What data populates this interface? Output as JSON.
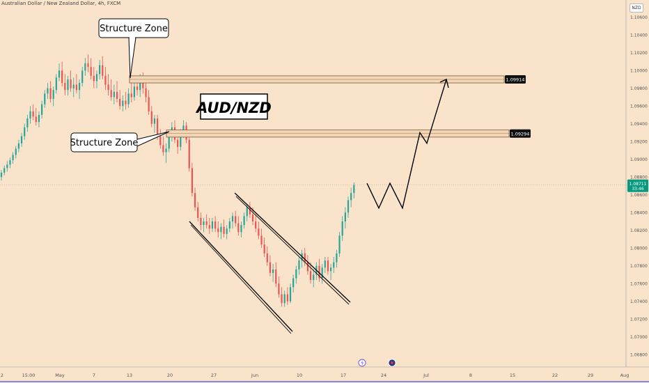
{
  "header": {
    "symbol_line": "Australian Dollar / New Zealand Dollar, 4h, FXCM",
    "currency": "NZD"
  },
  "chart_data": {
    "type": "candlestick",
    "title": "AUD/NZD",
    "y_ticks": [
      "1.10600",
      "1.10400",
      "1.10200",
      "1.10000",
      "1.09800",
      "1.09600",
      "1.09400",
      "1.09200",
      "1.09000",
      "1.08800",
      "1.08600",
      "1.08400",
      "1.08200",
      "1.08000",
      "1.07800",
      "1.07600",
      "1.07400",
      "1.07200",
      "1.07000",
      "1.06800"
    ],
    "ylim": [
      1.067,
      1.107
    ],
    "x_ticks": [
      "2",
      "15:00",
      "May",
      "7",
      "13",
      "20",
      "27",
      "Jun",
      "10",
      "17",
      "24",
      "Jul",
      "8",
      "15",
      "22",
      "29",
      "Aug"
    ],
    "annotations": [
      {
        "text": "Structure Zone",
        "target": "upper-zone"
      },
      {
        "text": "Structure Zone",
        "target": "lower-zone"
      }
    ],
    "zones": [
      {
        "name": "upper-zone",
        "low": 1.0986,
        "high": 1.0994,
        "label": "1.09914"
      },
      {
        "name": "lower-zone",
        "low": 1.0925,
        "high": 1.0933,
        "label": "1.09294"
      }
    ],
    "current_price": {
      "value": "1.08711",
      "time_left": "33:46",
      "level": 1.0871
    },
    "projection": [
      1.0873,
      1.0845,
      1.0873,
      1.0845,
      1.093,
      1.0918,
      1.099
    ],
    "candles": [
      [
        1.088,
        1.0888,
        1.0876,
        1.0885
      ],
      [
        1.0885,
        1.0893,
        1.0882,
        1.089
      ],
      [
        1.089,
        1.0898,
        1.0886,
        1.0894
      ],
      [
        1.0894,
        1.0902,
        1.089,
        1.0899
      ],
      [
        1.0899,
        1.0908,
        1.0895,
        1.0905
      ],
      [
        1.0905,
        1.0915,
        1.0901,
        1.0912
      ],
      [
        1.0912,
        1.0922,
        1.0908,
        1.0918
      ],
      [
        1.0918,
        1.093,
        1.0914,
        1.0926
      ],
      [
        1.0926,
        1.094,
        1.0922,
        1.0936
      ],
      [
        1.0936,
        1.095,
        1.0931,
        1.0946
      ],
      [
        1.0946,
        1.096,
        1.094,
        1.0954
      ],
      [
        1.0954,
        1.0962,
        1.0944,
        1.0948
      ],
      [
        1.0948,
        1.0958,
        1.0938,
        1.0942
      ],
      [
        1.0942,
        1.0954,
        1.0936,
        1.095
      ],
      [
        1.095,
        1.0966,
        1.0946,
        1.0962
      ],
      [
        1.0962,
        1.0978,
        1.0958,
        1.0974
      ],
      [
        1.0974,
        1.0986,
        1.0968,
        1.098
      ],
      [
        1.098,
        1.0988,
        1.0964,
        1.0968
      ],
      [
        1.0968,
        1.0982,
        1.096,
        1.0978
      ],
      [
        1.0978,
        1.0996,
        1.0974,
        1.0992
      ],
      [
        1.0992,
        1.1008,
        1.0988,
        1.1
      ],
      [
        1.1,
        1.101,
        1.0982,
        1.0986
      ],
      [
        1.0986,
        1.0996,
        1.0972,
        1.0978
      ],
      [
        1.0978,
        1.0994,
        1.0972,
        1.099
      ],
      [
        1.099,
        1.1,
        1.0976,
        1.098
      ],
      [
        1.098,
        1.0992,
        1.097,
        1.0984
      ],
      [
        1.0984,
        1.0996,
        1.0974,
        1.0978
      ],
      [
        1.0978,
        1.099,
        1.0968,
        1.0986
      ],
      [
        1.0986,
        1.1004,
        1.0982,
        1.1
      ],
      [
        1.1,
        1.1014,
        1.0994,
        1.1008
      ],
      [
        1.1008,
        1.1018,
        1.0998,
        1.1004
      ],
      [
        1.1004,
        1.1014,
        1.099,
        1.0994
      ],
      [
        1.0994,
        1.1004,
        1.098,
        1.0988
      ],
      [
        1.0988,
        1.1,
        1.098,
        1.0996
      ],
      [
        1.0996,
        1.1012,
        1.099,
        1.1006
      ],
      [
        1.1006,
        1.1016,
        1.099,
        1.0994
      ],
      [
        1.0994,
        1.1004,
        1.0978,
        1.0984
      ],
      [
        1.0984,
        1.0996,
        1.0972,
        1.0978
      ],
      [
        1.0978,
        1.099,
        1.0966,
        1.097
      ],
      [
        1.097,
        1.0984,
        1.0962,
        1.0976
      ],
      [
        1.0976,
        1.0988,
        1.0964,
        1.0968
      ],
      [
        1.0968,
        1.0978,
        1.0956,
        1.096
      ],
      [
        1.096,
        1.0972,
        1.0954,
        1.0966
      ],
      [
        1.0966,
        1.0976,
        1.0956,
        1.0962
      ],
      [
        1.0962,
        1.098,
        1.0958,
        1.0974
      ],
      [
        1.0974,
        1.0986,
        1.0964,
        1.097
      ],
      [
        1.097,
        1.0988,
        1.0966,
        1.0982
      ],
      [
        1.0982,
        1.0994,
        1.0972,
        1.0978
      ],
      [
        1.0978,
        1.0996,
        1.097,
        1.099
      ],
      [
        1.099,
        1.0998,
        1.0974,
        1.098
      ],
      [
        1.098,
        1.0988,
        1.0964,
        1.097
      ],
      [
        1.097,
        1.0978,
        1.095,
        1.0954
      ],
      [
        1.0954,
        1.096,
        1.0936,
        1.094
      ],
      [
        1.094,
        1.095,
        1.093,
        1.0946
      ],
      [
        1.0946,
        1.095,
        1.0922,
        1.0926
      ],
      [
        1.0926,
        1.0934,
        1.0912,
        1.0916
      ],
      [
        1.0916,
        1.0926,
        1.0904,
        1.0908
      ],
      [
        1.0908,
        1.0918,
        1.0896,
        1.0912
      ],
      [
        1.0912,
        1.093,
        1.0908,
        1.0926
      ],
      [
        1.0926,
        1.0942,
        1.092,
        1.0936
      ],
      [
        1.0936,
        1.0944,
        1.0918,
        1.0922
      ],
      [
        1.0922,
        1.093,
        1.0906,
        1.0914
      ],
      [
        1.0914,
        1.0934,
        1.091,
        1.093
      ],
      [
        1.093,
        1.0944,
        1.0924,
        1.0938
      ],
      [
        1.0938,
        1.0942,
        1.0918,
        1.0922
      ],
      [
        1.0922,
        1.0928,
        1.0886,
        1.089
      ],
      [
        1.089,
        1.0896,
        1.0858,
        1.0862
      ],
      [
        1.0862,
        1.0868,
        1.0842,
        1.0846
      ],
      [
        1.0846,
        1.0852,
        1.083,
        1.0834
      ],
      [
        1.0834,
        1.084,
        1.082,
        1.0826
      ],
      [
        1.0826,
        1.0834,
        1.0818,
        1.083
      ],
      [
        1.083,
        1.0838,
        1.0822,
        1.0826
      ],
      [
        1.0826,
        1.0834,
        1.0816,
        1.0822
      ],
      [
        1.0822,
        1.0834,
        1.0818,
        1.083
      ],
      [
        1.083,
        1.0836,
        1.0818,
        1.0822
      ],
      [
        1.0822,
        1.083,
        1.0812,
        1.0818
      ],
      [
        1.0818,
        1.0828,
        1.081,
        1.0824
      ],
      [
        1.0824,
        1.0832,
        1.0812,
        1.0816
      ],
      [
        1.0816,
        1.0826,
        1.081,
        1.0822
      ],
      [
        1.0822,
        1.0834,
        1.0818,
        1.083
      ],
      [
        1.083,
        1.084,
        1.0822,
        1.0836
      ],
      [
        1.0836,
        1.0842,
        1.0824,
        1.0828
      ],
      [
        1.0828,
        1.0836,
        1.0814,
        1.0818
      ],
      [
        1.0818,
        1.083,
        1.0812,
        1.0826
      ],
      [
        1.0826,
        1.084,
        1.0822,
        1.0836
      ],
      [
        1.0836,
        1.085,
        1.083,
        1.0846
      ],
      [
        1.0846,
        1.0852,
        1.0834,
        1.0838
      ],
      [
        1.0838,
        1.0846,
        1.0826,
        1.083
      ],
      [
        1.083,
        1.0838,
        1.0818,
        1.0822
      ],
      [
        1.0822,
        1.083,
        1.081,
        1.0814
      ],
      [
        1.0814,
        1.0822,
        1.08,
        1.0804
      ],
      [
        1.0804,
        1.0812,
        1.079,
        1.0794
      ],
      [
        1.0794,
        1.0802,
        1.078,
        1.0784
      ],
      [
        1.0784,
        1.0792,
        1.0768,
        1.0772
      ],
      [
        1.0772,
        1.0782,
        1.0762,
        1.0776
      ],
      [
        1.0776,
        1.0784,
        1.0756,
        1.076
      ],
      [
        1.076,
        1.0768,
        1.0744,
        1.0748
      ],
      [
        1.0748,
        1.0756,
        1.0734,
        1.0738
      ],
      [
        1.0738,
        1.0752,
        1.0734,
        1.0748
      ],
      [
        1.0748,
        1.0756,
        1.0736,
        1.074
      ],
      [
        1.074,
        1.076,
        1.0738,
        1.0756
      ],
      [
        1.0756,
        1.077,
        1.075,
        1.0766
      ],
      [
        1.0766,
        1.078,
        1.076,
        1.0776
      ],
      [
        1.0776,
        1.079,
        1.077,
        1.0786
      ],
      [
        1.0786,
        1.0798,
        1.0778,
        1.0794
      ],
      [
        1.0794,
        1.08,
        1.078,
        1.0784
      ],
      [
        1.0784,
        1.0792,
        1.077,
        1.0774
      ],
      [
        1.0774,
        1.0784,
        1.076,
        1.0764
      ],
      [
        1.0764,
        1.0776,
        1.0756,
        1.077
      ],
      [
        1.077,
        1.0784,
        1.0764,
        1.078
      ],
      [
        1.078,
        1.0788,
        1.0762,
        1.0766
      ],
      [
        1.0766,
        1.0782,
        1.076,
        1.0778
      ],
      [
        1.0778,
        1.079,
        1.0772,
        1.0786
      ],
      [
        1.0786,
        1.079,
        1.077,
        1.0774
      ],
      [
        1.0774,
        1.0782,
        1.0764,
        1.0778
      ],
      [
        1.0778,
        1.079,
        1.0772,
        1.0784
      ],
      [
        1.0784,
        1.0798,
        1.0778,
        1.0794
      ],
      [
        1.0794,
        1.0818,
        1.079,
        1.0814
      ],
      [
        1.0814,
        1.0836,
        1.0808,
        1.083
      ],
      [
        1.083,
        1.0846,
        1.0822,
        1.084
      ],
      [
        1.084,
        1.0858,
        1.0834,
        1.0854
      ],
      [
        1.0854,
        1.0868,
        1.0846,
        1.0862
      ],
      [
        1.0862,
        1.0874,
        1.0856,
        1.0871
      ]
    ]
  },
  "colors": {
    "up": "#26a69a",
    "down": "#ef5350",
    "bg": "#f9e3cb",
    "zone_fill": "#f3d6b6",
    "zone_stroke": "#7a5a3a",
    "price_label": "#089981"
  }
}
